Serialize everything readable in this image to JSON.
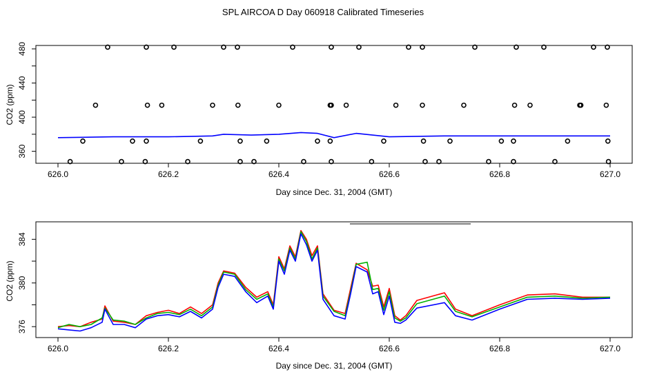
{
  "title": "SPL AIRCOA D  Day 060918  Calibrated Timeseries",
  "colors": {
    "red": "#ff0000",
    "green": "#00b000",
    "blue": "#0000ff",
    "axis": "#000000"
  },
  "chart_data": [
    {
      "type": "line",
      "xlabel": "Day since Dec. 31, 2004 (GMT)",
      "ylabel": "CO2 (ppm)",
      "xlim": [
        625.96,
        627.04
      ],
      "ylim": [
        346,
        484
      ],
      "x_ticks": [
        626.0,
        626.2,
        626.4,
        626.6,
        626.8,
        627.0
      ],
      "x_tick_labels": [
        "626.0",
        "626.2",
        "626.4",
        "626.6",
        "626.8",
        "627.0"
      ],
      "y_ticks": [
        360,
        400,
        440,
        480
      ],
      "y_tick_labels": [
        "360",
        "400",
        "440",
        "480"
      ],
      "y_minor_ticks": [
        380,
        420,
        460
      ],
      "series": [
        {
          "color": "blue",
          "kind": "line",
          "x": [
            626.0,
            626.1,
            626.2,
            626.28,
            626.3,
            626.35,
            626.4,
            626.44,
            626.47,
            626.5,
            626.54,
            626.6,
            626.7,
            626.8,
            626.9,
            627.0
          ],
          "y": [
            376,
            377,
            377,
            378,
            380,
            379,
            380,
            382,
            381,
            376,
            381,
            377,
            378,
            378,
            378,
            378
          ]
        },
        {
          "name": "calibration-points",
          "kind": "points",
          "x": [
            626.09,
            626.16,
            626.21,
            626.3,
            626.325,
            626.425,
            626.495,
            626.545,
            626.635,
            626.66,
            626.755,
            626.83,
            626.88,
            626.97,
            626.995,
            626.068,
            626.162,
            626.188,
            626.28,
            626.326,
            626.4,
            626.493,
            626.495,
            626.522,
            626.612,
            626.66,
            626.735,
            626.827,
            626.855,
            626.945,
            626.947,
            626.993,
            626.045,
            626.135,
            626.16,
            626.258,
            626.33,
            626.378,
            626.47,
            626.493,
            626.59,
            626.662,
            626.71,
            626.803,
            626.825,
            626.923,
            626.996,
            626.022,
            626.115,
            626.158,
            626.235,
            626.33,
            626.355,
            626.445,
            626.495,
            626.568,
            626.665,
            626.69,
            626.78,
            626.825,
            626.9,
            626.997
          ],
          "y": [
            482,
            482,
            482,
            482,
            482,
            482,
            482,
            482,
            482,
            482,
            482,
            482,
            482,
            482,
            482,
            414,
            414,
            414,
            414,
            414,
            414,
            414,
            414,
            414,
            414,
            414,
            414,
            414,
            414,
            414,
            414,
            414,
            372,
            372,
            372,
            372,
            372,
            372,
            372,
            372,
            372,
            372,
            372,
            372,
            372,
            372,
            372,
            348,
            348,
            348,
            348,
            348,
            348,
            348,
            348,
            348,
            348,
            348,
            348,
            348,
            348,
            348
          ]
        }
      ]
    },
    {
      "type": "line",
      "xlabel": "Day since Dec. 31, 2004 (GMT)",
      "ylabel": "CO2 (ppm)",
      "xlim": [
        625.96,
        627.04
      ],
      "ylim": [
        375.0,
        385.6
      ],
      "x_ticks": [
        626.0,
        626.2,
        626.4,
        626.6,
        626.8,
        627.0
      ],
      "x_tick_labels": [
        "626.0",
        "626.2",
        "626.4",
        "626.6",
        "626.8",
        "627.0"
      ],
      "y_ticks": [
        376,
        380,
        384
      ],
      "y_tick_labels": [
        "376",
        "380",
        "384"
      ],
      "y_minor_ticks": [
        378,
        382
      ],
      "series": [
        {
          "color": "red",
          "x": [
            626.0,
            626.02,
            626.04,
            626.06,
            626.08,
            626.085,
            626.1,
            626.12,
            626.14,
            626.16,
            626.18,
            626.2,
            626.22,
            626.24,
            626.26,
            626.28,
            626.29,
            626.3,
            626.32,
            626.34,
            626.36,
            626.38,
            626.39,
            626.4,
            626.41,
            626.42,
            626.43,
            626.44,
            626.45,
            626.46,
            626.47,
            626.48,
            626.5,
            626.52,
            626.53,
            626.54,
            626.56,
            626.57,
            626.58,
            626.59,
            626.6,
            626.61,
            626.62,
            626.63,
            626.65,
            626.7,
            626.72,
            626.75,
            626.8,
            626.85,
            626.9,
            626.95,
            627.0
          ],
          "y": [
            376.0,
            376.1,
            376.0,
            376.4,
            376.7,
            377.9,
            376.5,
            376.4,
            376.2,
            377.0,
            377.3,
            377.5,
            377.2,
            377.8,
            377.2,
            378.0,
            380.0,
            381.1,
            380.9,
            379.6,
            378.7,
            379.2,
            378.0,
            382.4,
            381.3,
            383.4,
            382.4,
            384.8,
            384.0,
            382.5,
            383.4,
            379.0,
            377.5,
            377.2,
            379.5,
            381.8,
            381.2,
            379.7,
            379.8,
            377.8,
            379.5,
            377.0,
            376.6,
            377.0,
            378.4,
            379.1,
            377.6,
            377.0,
            378.0,
            378.9,
            379.0,
            378.7,
            378.7
          ]
        },
        {
          "color": "green",
          "x": [
            626.0,
            626.02,
            626.04,
            626.06,
            626.08,
            626.085,
            626.1,
            626.12,
            626.14,
            626.16,
            626.18,
            626.2,
            626.22,
            626.24,
            626.26,
            626.28,
            626.29,
            626.3,
            626.32,
            626.34,
            626.36,
            626.38,
            626.39,
            626.4,
            626.41,
            626.42,
            626.43,
            626.44,
            626.45,
            626.46,
            626.47,
            626.48,
            626.5,
            626.52,
            626.53,
            626.54,
            626.56,
            626.57,
            626.58,
            626.59,
            626.6,
            626.61,
            626.62,
            626.63,
            626.65,
            626.7,
            626.72,
            626.75,
            626.8,
            626.85,
            626.9,
            626.95,
            627.0
          ],
          "y": [
            375.9,
            376.2,
            376.0,
            376.2,
            376.8,
            377.7,
            376.6,
            376.5,
            376.2,
            376.8,
            377.2,
            377.3,
            377.1,
            377.6,
            377.0,
            377.8,
            379.8,
            381.0,
            380.8,
            379.4,
            378.5,
            379.0,
            377.8,
            382.2,
            381.1,
            383.2,
            382.2,
            384.7,
            383.8,
            382.2,
            383.2,
            378.8,
            377.4,
            377.0,
            379.2,
            381.7,
            381.9,
            379.4,
            379.5,
            377.5,
            379.2,
            376.8,
            376.5,
            376.8,
            378.1,
            378.8,
            377.4,
            376.9,
            377.8,
            378.7,
            378.8,
            378.6,
            378.7
          ]
        },
        {
          "color": "blue",
          "x": [
            626.0,
            626.02,
            626.04,
            626.06,
            626.08,
            626.085,
            626.1,
            626.12,
            626.14,
            626.16,
            626.18,
            626.2,
            626.22,
            626.24,
            626.26,
            626.28,
            626.29,
            626.3,
            626.32,
            626.34,
            626.36,
            626.38,
            626.39,
            626.4,
            626.41,
            626.42,
            626.43,
            626.44,
            626.45,
            626.46,
            626.47,
            626.48,
            626.5,
            626.52,
            626.53,
            626.54,
            626.56,
            626.57,
            626.58,
            626.59,
            626.6,
            626.61,
            626.62,
            626.63,
            626.65,
            626.7,
            626.72,
            626.75,
            626.8,
            626.85,
            626.9,
            626.95,
            627.0
          ],
          "y": [
            375.8,
            375.7,
            375.6,
            375.9,
            376.4,
            377.6,
            376.2,
            376.2,
            375.9,
            376.7,
            377.0,
            377.1,
            376.9,
            377.4,
            376.8,
            377.6,
            379.6,
            380.8,
            380.6,
            379.2,
            378.2,
            378.8,
            377.6,
            382.0,
            380.8,
            383.0,
            382.0,
            384.5,
            383.5,
            382.0,
            383.0,
            378.5,
            377.0,
            376.7,
            379.0,
            381.5,
            381.0,
            379.0,
            379.2,
            377.1,
            378.8,
            376.4,
            376.3,
            376.6,
            377.7,
            378.2,
            377.0,
            376.6,
            377.6,
            378.5,
            378.6,
            378.5,
            378.6
          ]
        }
      ]
    }
  ]
}
